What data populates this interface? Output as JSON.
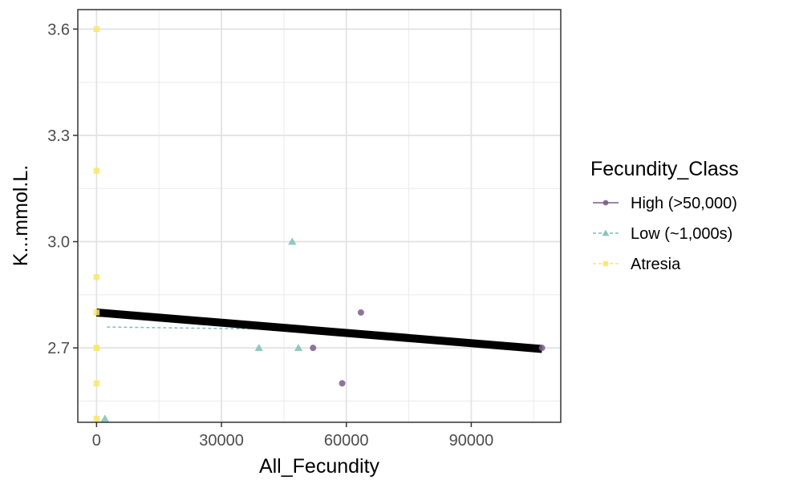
{
  "chart_data": {
    "type": "scatter",
    "title": "",
    "xlabel": "All_Fecundity",
    "ylabel": "K...mmol.L.",
    "xlim": [
      -4500,
      111500
    ],
    "ylim": [
      2.49,
      3.655
    ],
    "x_ticks": [
      0,
      30000,
      60000,
      90000
    ],
    "x_tick_labels": [
      "0",
      "30000",
      "60000",
      "90000"
    ],
    "y_ticks": [
      2.7,
      3.0,
      3.3,
      3.6
    ],
    "y_tick_labels": [
      "2.7",
      "3.0",
      "3.3",
      "3.6"
    ],
    "grid": true,
    "legend": {
      "title": "Fecundity_Class",
      "position": "right"
    },
    "series": [
      {
        "name": "High (>50,000)",
        "marker": "circle",
        "color": "#7b5d8c",
        "line_style": "solid",
        "points": [
          {
            "x": 52000,
            "y": 2.7
          },
          {
            "x": 59000,
            "y": 2.6
          },
          {
            "x": 63500,
            "y": 2.8
          },
          {
            "x": 107000,
            "y": 2.7
          }
        ]
      },
      {
        "name": "Low (~1,000s)",
        "marker": "triangle",
        "color": "#7fbfb7",
        "line_style": "dashed",
        "points": [
          {
            "x": 2000,
            "y": 2.5
          },
          {
            "x": 39000,
            "y": 2.7
          },
          {
            "x": 47000,
            "y": 3.0
          },
          {
            "x": 48500,
            "y": 2.7
          }
        ],
        "fit": {
          "x": [
            2500,
            48500
          ],
          "y": [
            2.759,
            2.752
          ]
        }
      },
      {
        "name": "Atresia",
        "marker": "square",
        "color": "#f9e66a",
        "line_style": "dashed",
        "points": [
          {
            "x": 0,
            "y": 3.6
          },
          {
            "x": 0,
            "y": 3.2
          },
          {
            "x": 0,
            "y": 2.9
          },
          {
            "x": 0,
            "y": 2.8
          },
          {
            "x": 0,
            "y": 2.7
          },
          {
            "x": 0,
            "y": 2.7
          },
          {
            "x": 0,
            "y": 2.6
          },
          {
            "x": 0,
            "y": 2.5
          }
        ]
      }
    ],
    "overall_fit": {
      "x": [
        0,
        107000
      ],
      "y": [
        2.8,
        2.697
      ],
      "color": "#000000"
    }
  }
}
